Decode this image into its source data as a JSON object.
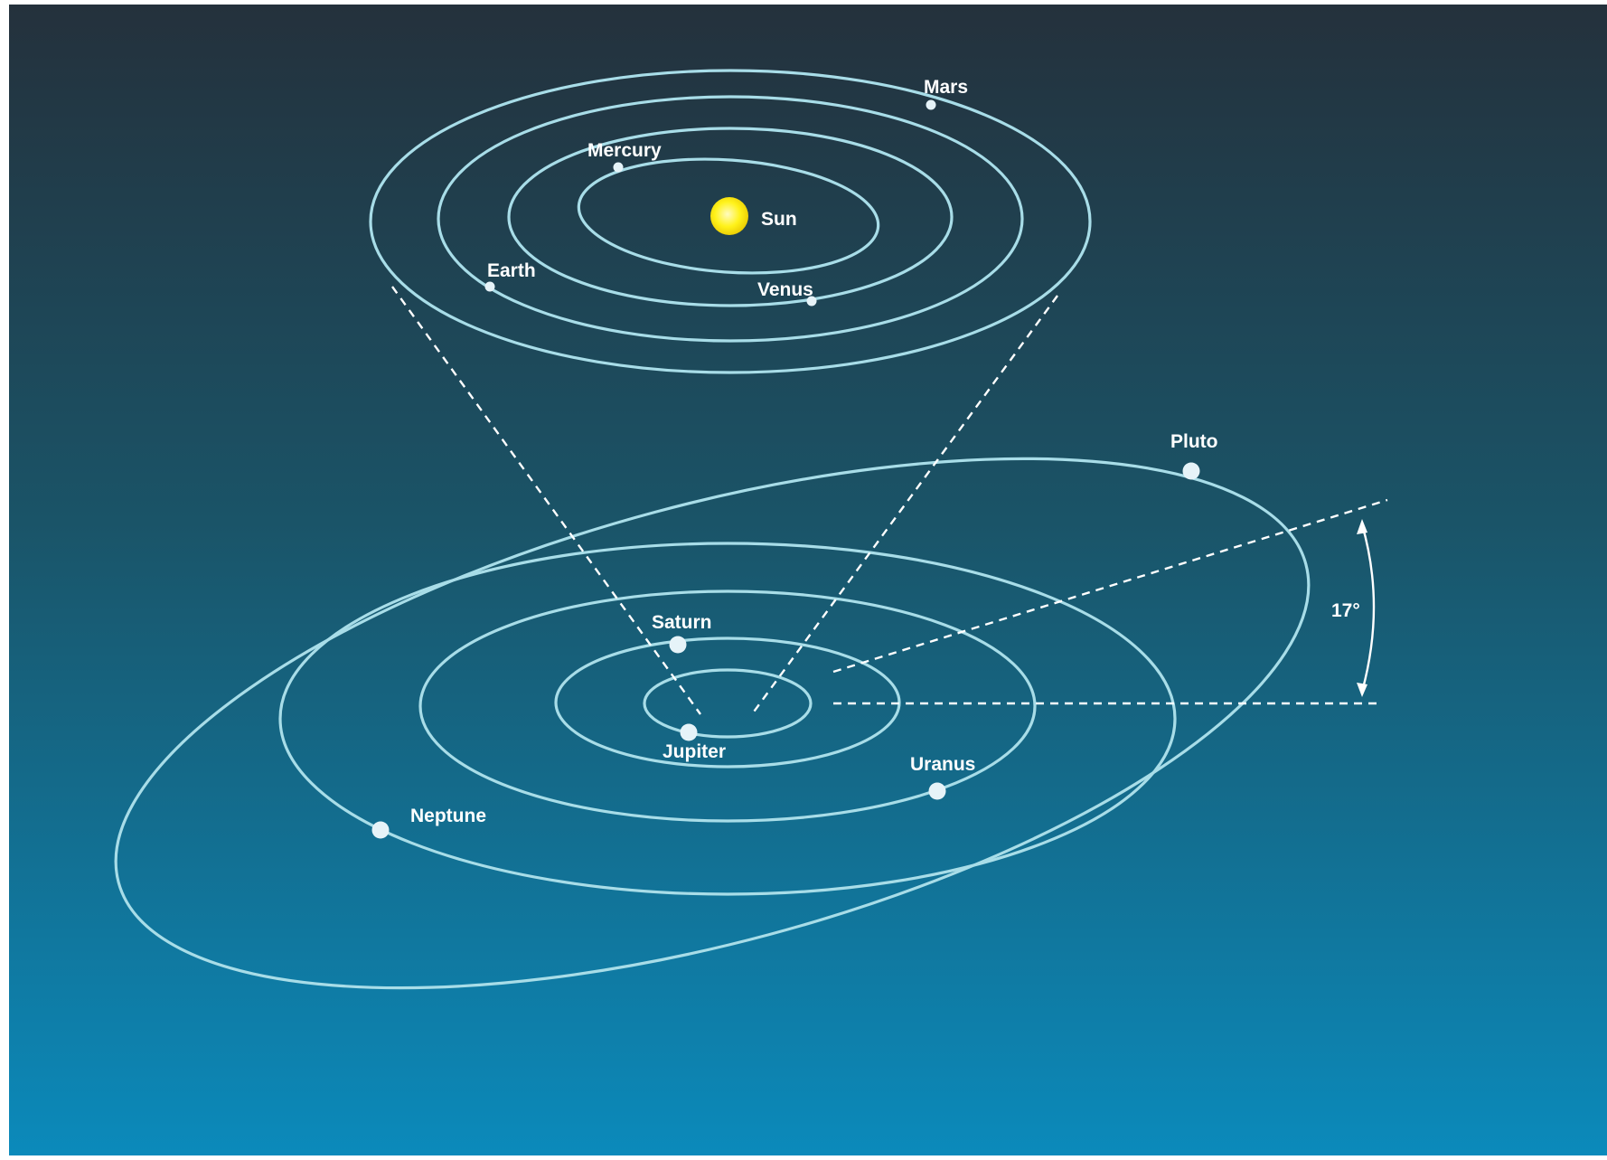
{
  "colors": {
    "background_top": "#24313c",
    "background_bottom": "#0b8abb",
    "orbit": "#a8dde8",
    "planet": "#e6f3f8",
    "sun": "#fff21a",
    "guide": "#ffffff"
  },
  "inner_system": {
    "sun_label": "Sun",
    "planets": [
      {
        "id": "mercury",
        "label": "Mercury"
      },
      {
        "id": "venus",
        "label": "Venus"
      },
      {
        "id": "earth",
        "label": "Earth"
      },
      {
        "id": "mars",
        "label": "Mars"
      }
    ]
  },
  "outer_system": {
    "planets": [
      {
        "id": "jupiter",
        "label": "Jupiter"
      },
      {
        "id": "saturn",
        "label": "Saturn"
      },
      {
        "id": "uranus",
        "label": "Uranus"
      },
      {
        "id": "neptune",
        "label": "Neptune"
      },
      {
        "id": "pluto",
        "label": "Pluto"
      }
    ]
  },
  "inclination": {
    "value_deg": 17,
    "label": "17°"
  }
}
